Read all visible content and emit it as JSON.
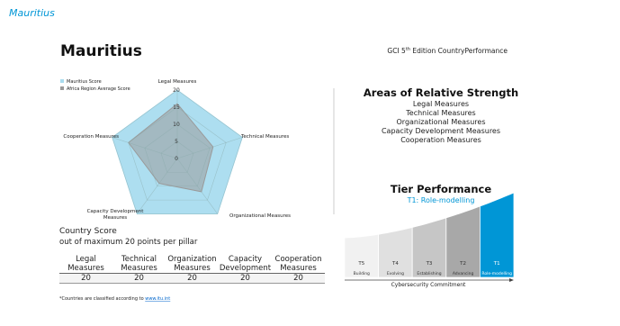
{
  "header": {
    "label": "Mauritius",
    "title": "Mauritius",
    "edition": {
      "prefix": "GCI 5",
      "sup": "th",
      "rest": " Edition CountryPerformance"
    }
  },
  "chart_data": {
    "type": "radar",
    "categories": [
      "Legal Measures",
      "Technical Measures",
      "Organizational Measures",
      "Capacity Development Measures",
      "Cooperation Measures"
    ],
    "series": [
      {
        "name": "Mauritius Score",
        "color": "#a9dcef",
        "values": [
          20,
          20,
          20,
          20,
          20
        ]
      },
      {
        "name": "Africa Region Average Score",
        "color": "#9a9a9a",
        "values": [
          16,
          11,
          12,
          9,
          15
        ]
      }
    ],
    "rlim": [
      0,
      20
    ],
    "rticks": [
      0,
      5,
      10,
      15,
      20
    ],
    "grid": true
  },
  "country_score": {
    "title": "Country Score",
    "subtitle": "out of maximum 20 points per pillar"
  },
  "table": {
    "headers": [
      "Legal Measures",
      "Technical Measures",
      "Organization Measures",
      "Capacity Development",
      "Cooperation Measures"
    ],
    "rows": [
      [
        "20",
        "20",
        "20",
        "20",
        "20"
      ]
    ]
  },
  "footnote": {
    "text": "*Countries are classified according to ",
    "link": "www.itu.int"
  },
  "strengths": {
    "title": "Areas of Relative Strength",
    "items": [
      "Legal Measures",
      "Technical Measures",
      "Organizational Measures",
      "Capacity Development Measures",
      "Cooperation Measures"
    ]
  },
  "tier": {
    "title": "Tier Performance",
    "subtitle": "T1: Role-modelling",
    "tiers": [
      {
        "code": "T5",
        "name": "Building"
      },
      {
        "code": "T4",
        "name": "Evolving"
      },
      {
        "code": "T3",
        "name": "Establishing"
      },
      {
        "code": "T2",
        "name": "Advancing"
      },
      {
        "code": "T1",
        "name": "Role-modelling"
      }
    ],
    "axis_label": "Cybersecurity Commitment"
  }
}
